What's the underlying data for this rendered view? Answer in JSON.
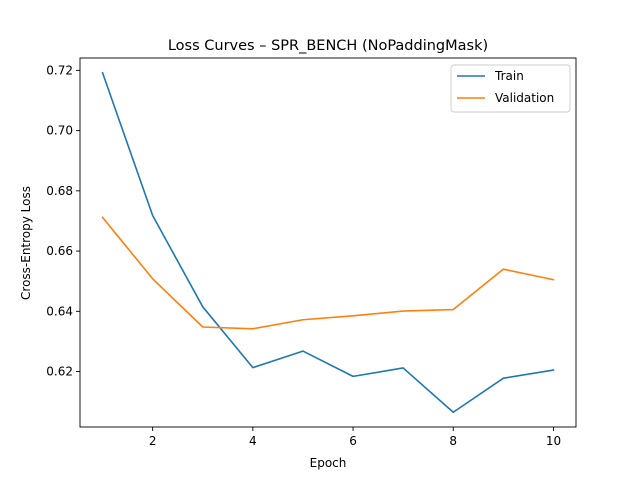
{
  "chart_data": {
    "type": "line",
    "title": "Loss Curves – SPR_BENCH (NoPaddingMask)",
    "xlabel": "Epoch",
    "ylabel": "Cross-Entropy Loss",
    "x": [
      1,
      2,
      3,
      4,
      5,
      6,
      7,
      8,
      9,
      10
    ],
    "xlim": [
      0.55,
      10.45
    ],
    "ylim": [
      0.6016,
      0.7241
    ],
    "xticks": [
      2,
      4,
      6,
      8,
      10
    ],
    "yticks": [
      0.62,
      0.64,
      0.66,
      0.68,
      0.7,
      0.72
    ],
    "ytick_labels": [
      "0.62",
      "0.64",
      "0.66",
      "0.68",
      "0.70",
      "0.72"
    ],
    "grid": false,
    "legend_position": "top-right",
    "series": [
      {
        "name": "Train",
        "color": "#1f77b4",
        "values": [
          0.7192,
          0.6718,
          0.6415,
          0.6213,
          0.6268,
          0.6184,
          0.6212,
          0.6065,
          0.6178,
          0.6205
        ]
      },
      {
        "name": "Validation",
        "color": "#ff7f0e",
        "values": [
          0.6712,
          0.6508,
          0.6348,
          0.6342,
          0.6372,
          0.6385,
          0.6401,
          0.6406,
          0.654,
          0.6505
        ]
      }
    ]
  }
}
